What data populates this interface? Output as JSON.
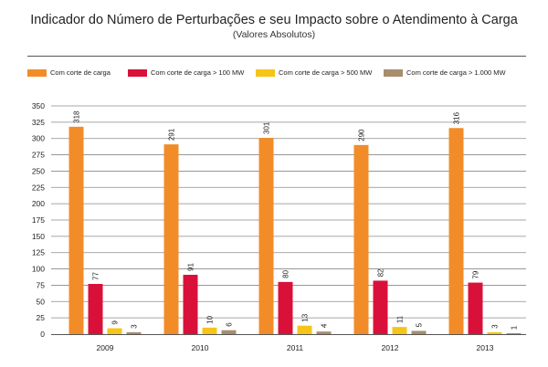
{
  "chart_data": {
    "type": "bar",
    "title": "Indicador do Número de Perturbações e seu Impacto sobre o Atendimento à Carga",
    "subtitle": "(Valores Absolutos)",
    "xlabel": "",
    "ylabel": "",
    "ylim": [
      0,
      350
    ],
    "yticks": [
      0,
      25,
      50,
      75,
      100,
      125,
      150,
      175,
      200,
      225,
      250,
      275,
      300,
      325,
      350
    ],
    "grid": true,
    "legend_position": "top",
    "categories": [
      "2009",
      "2010",
      "2011",
      "2012",
      "2013"
    ],
    "series": [
      {
        "name": "Com corte de carga",
        "color": "#f28c28",
        "values": [
          318,
          291,
          301,
          290,
          316
        ]
      },
      {
        "name": "Com corte de carga > 100 MW",
        "color": "#d9113a",
        "values": [
          77,
          91,
          80,
          82,
          79
        ]
      },
      {
        "name": "Com corte de carga > 500 MW",
        "color": "#f5c518",
        "values": [
          9,
          10,
          13,
          11,
          3
        ]
      },
      {
        "name": "Com corte de carga > 1.000 MW",
        "color": "#a88e6e",
        "values": [
          3,
          6,
          4,
          5,
          1
        ]
      }
    ]
  }
}
